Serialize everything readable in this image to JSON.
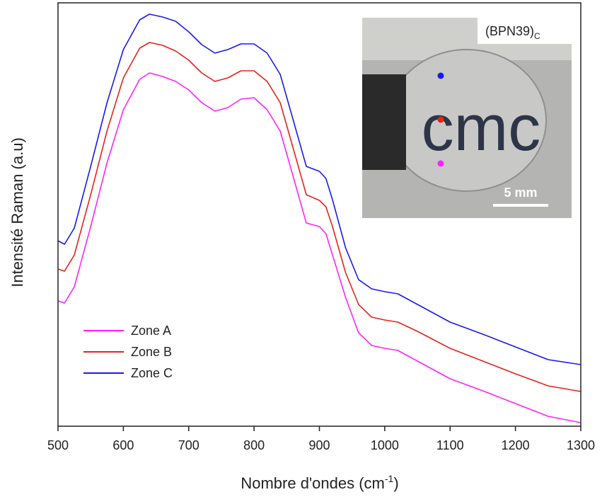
{
  "chart_data": {
    "type": "line",
    "x_label": "Nombre d'ondes (cm",
    "x_label_sup": "-1",
    "x_label_end": ")",
    "y_label": "Intensité Raman (a.u)",
    "x": [
      500,
      510,
      525,
      550,
      575,
      600,
      625,
      640,
      660,
      680,
      700,
      720,
      740,
      760,
      780,
      800,
      820,
      840,
      860,
      880,
      900,
      910,
      920,
      940,
      960,
      980,
      1000,
      1020,
      1050,
      1100,
      1150,
      1200,
      1250,
      1300
    ],
    "series": [
      {
        "name": "Zone A",
        "color": "#ff22ff",
        "values": [
          177,
          174,
          197,
          282,
          372,
          447,
          490,
          499,
          494,
          487,
          475,
          457,
          445,
          450,
          462,
          464,
          447,
          417,
          352,
          287,
          282,
          272,
          242,
          182,
          132,
          114,
          110,
          107,
          92,
          67,
          50,
          32,
          14,
          5
        ]
      },
      {
        "name": "Zone B",
        "color": "#e8221a",
        "values": [
          222,
          219,
          242,
          327,
          417,
          492,
          534,
          542,
          538,
          530,
          517,
          499,
          487,
          492,
          502,
          502,
          487,
          457,
          392,
          327,
          319,
          310,
          282,
          217,
          172,
          154,
          150,
          147,
          134,
          110,
          92,
          74,
          57,
          49
        ]
      },
      {
        "name": "Zone C",
        "color": "#1a1aee",
        "values": [
          262,
          257,
          280,
          367,
          457,
          532,
          574,
          582,
          578,
          572,
          557,
          539,
          527,
          532,
          540,
          540,
          527,
          497,
          432,
          367,
          360,
          350,
          320,
          252,
          207,
          194,
          190,
          187,
          172,
          147,
          130,
          112,
          94,
          87
        ]
      }
    ],
    "xlim": [
      500,
      1300
    ],
    "xticks": [
      500,
      600,
      700,
      800,
      900,
      1000,
      1100,
      1200,
      1300
    ],
    "ylim": [
      0,
      598
    ],
    "legend": "lower left",
    "inset": {
      "label": "(BPN39)",
      "label_sub": "C",
      "photo_text": "cmc",
      "scale_bar": "5 mm",
      "dot_colors": [
        "#1a1aee",
        "#e8221a",
        "#ff22ff"
      ]
    }
  }
}
